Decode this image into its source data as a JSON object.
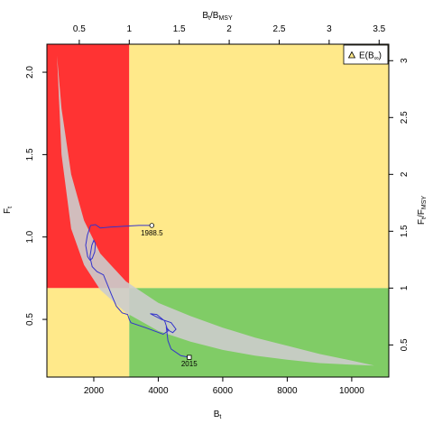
{
  "chart_data": {
    "type": "scatter",
    "subtype": "kobe-phase-plot",
    "x_bottom": {
      "label": "B",
      "label_sub": "t",
      "range": [
        546,
        11150
      ],
      "ticks": [
        2000,
        4000,
        6000,
        8000,
        10000
      ]
    },
    "y_left": {
      "label": "F",
      "label_sub": "t",
      "range": [
        0.15,
        2.17
      ],
      "ticks": [
        0.5,
        1.0,
        1.5,
        2.0
      ],
      "tick_labels": [
        "0.5",
        "1.0",
        "1.5",
        "2.0"
      ]
    },
    "x_top": {
      "label": "B",
      "label_sub": "t",
      "label_mid": "/B",
      "label_sub2": "MSY",
      "ticks": [
        0.5,
        1,
        1.5,
        2,
        2.5,
        3,
        3.5
      ],
      "tick_labels": [
        "0.5",
        "1",
        "1.5",
        "2",
        "2.5",
        "3",
        "3.5"
      ]
    },
    "y_right": {
      "label": "F",
      "label_sub": "t",
      "label_mid": "/F",
      "label_sub2": "MSY",
      "ticks": [
        0.5,
        1,
        1.5,
        2,
        2.5,
        3
      ],
      "tick_labels": [
        "0.5",
        "1",
        "1.5",
        "2",
        "2.5",
        "3"
      ]
    },
    "reference": {
      "Bmsy": 3100,
      "Fmsy": 0.69
    },
    "quadrant_colors": {
      "overfished_overfishing": "#ff3333",
      "overfished_only": "#ffe98a",
      "overfishing_only": "#ffe98a",
      "healthy": "#80cc66"
    },
    "equilibrium_band": {
      "color": "#cccccc",
      "upper": [
        [
          860,
          2.1
        ],
        [
          1000,
          1.78
        ],
        [
          1300,
          1.38
        ],
        [
          1700,
          1.1
        ],
        [
          2200,
          0.9
        ],
        [
          3000,
          0.73
        ],
        [
          4000,
          0.6
        ],
        [
          5000,
          0.52
        ],
        [
          6000,
          0.45
        ],
        [
          7000,
          0.39
        ],
        [
          8000,
          0.34
        ],
        [
          9000,
          0.29
        ],
        [
          10000,
          0.25
        ],
        [
          10700,
          0.22
        ]
      ],
      "lower": [
        [
          10700,
          0.22
        ],
        [
          10000,
          0.225
        ],
        [
          9000,
          0.235
        ],
        [
          8000,
          0.255
        ],
        [
          7000,
          0.28
        ],
        [
          6000,
          0.315
        ],
        [
          5000,
          0.365
        ],
        [
          4000,
          0.43
        ],
        [
          3000,
          0.54
        ],
        [
          2200,
          0.68
        ],
        [
          1700,
          0.83
        ],
        [
          1300,
          1.05
        ],
        [
          1000,
          1.5
        ],
        [
          860,
          2.1
        ]
      ]
    },
    "trajectory": {
      "color": "#3333cc",
      "points": [
        [
          3800,
          1.07
        ],
        [
          3400,
          1.07
        ],
        [
          2900,
          1.065
        ],
        [
          2500,
          1.06
        ],
        [
          2200,
          1.055
        ],
        [
          2050,
          1.075
        ],
        [
          1900,
          1.07
        ],
        [
          1800,
          1.01
        ],
        [
          1750,
          0.95
        ],
        [
          1810,
          0.88
        ],
        [
          1880,
          0.86
        ],
        [
          1950,
          0.87
        ],
        [
          2030,
          0.91
        ],
        [
          2050,
          0.96
        ],
        [
          2000,
          0.98
        ],
        [
          1940,
          0.95
        ],
        [
          1880,
          0.88
        ],
        [
          1950,
          0.82
        ],
        [
          2100,
          0.79
        ],
        [
          2300,
          0.77
        ],
        [
          2550,
          0.65
        ],
        [
          2700,
          0.58
        ],
        [
          2880,
          0.54
        ],
        [
          3050,
          0.53
        ],
        [
          3100,
          0.5
        ],
        [
          3150,
          0.48
        ],
        [
          3600,
          0.45
        ],
        [
          4150,
          0.41
        ],
        [
          4300,
          0.43
        ],
        [
          4200,
          0.49
        ],
        [
          3950,
          0.53
        ],
        [
          3750,
          0.535
        ],
        [
          3900,
          0.52
        ],
        [
          4100,
          0.5
        ],
        [
          4400,
          0.48
        ],
        [
          4550,
          0.44
        ],
        [
          4450,
          0.42
        ],
        [
          4350,
          0.43
        ],
        [
          4250,
          0.45
        ],
        [
          4300,
          0.37
        ],
        [
          4400,
          0.32
        ],
        [
          4700,
          0.28
        ],
        [
          4960,
          0.27
        ]
      ]
    },
    "first_point": {
      "x": 3800,
      "y": 1.07,
      "label": "1988.5"
    },
    "last_point": {
      "x": 4960,
      "y": 0.27,
      "label": "2015"
    },
    "legend": {
      "position": "top-right",
      "entry": "E(B",
      "entry_sub": "∞",
      "entry_close": ")"
    }
  }
}
